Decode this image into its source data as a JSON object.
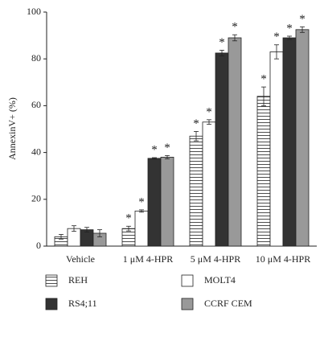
{
  "chart_data": {
    "type": "bar",
    "y_label": "AnnexinV+ (%)",
    "categories": [
      "Vehicle",
      "1 μM 4-HPR",
      "5 μM 4-HPR",
      "10 μM 4-HPR"
    ],
    "series": [
      {
        "name": "REH",
        "color": "#ffffff",
        "hatch": "horizontal",
        "values": [
          4,
          7.5,
          47,
          64
        ],
        "errors": [
          1,
          1,
          2,
          4
        ],
        "markers": [
          null,
          "*",
          "*",
          "*"
        ]
      },
      {
        "name": "MOLT4",
        "color": "#ffffff",
        "values": [
          7.5,
          15,
          53,
          83
        ],
        "errors": [
          1.2,
          0.5,
          1,
          3
        ],
        "markers": [
          null,
          "*",
          "*",
          "*"
        ]
      },
      {
        "name": "RS4;11",
        "color": "#333333",
        "values": [
          7,
          37.5,
          82.5,
          89
        ],
        "errors": [
          1,
          0.3,
          1.2,
          0.7
        ],
        "markers": [
          null,
          "*",
          "*",
          "*"
        ]
      },
      {
        "name": "CCRF CEM",
        "color": "#999999",
        "values": [
          5.5,
          38,
          89,
          92.5
        ],
        "errors": [
          1.5,
          0.7,
          1.3,
          1.2
        ],
        "markers": [
          null,
          "*",
          "*",
          "*"
        ]
      }
    ],
    "ylim": [
      0,
      100
    ],
    "yticks": [
      0,
      20,
      40,
      60,
      80,
      100
    ],
    "legend": "bottom"
  }
}
